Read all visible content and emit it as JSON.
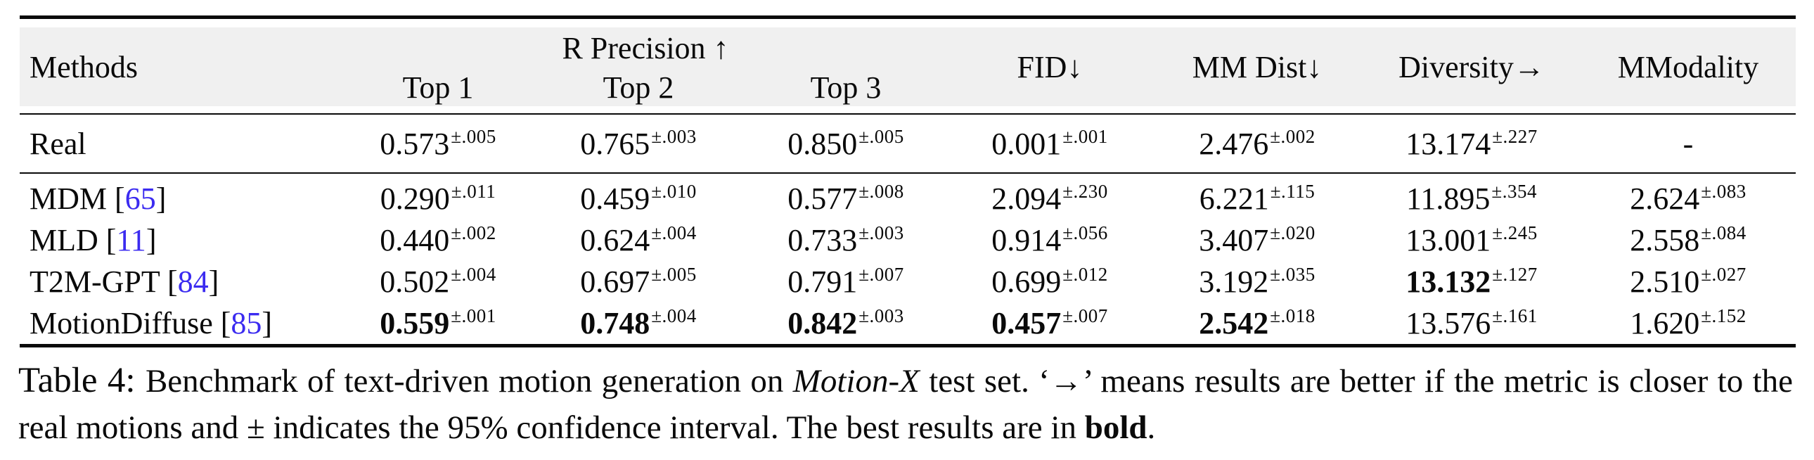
{
  "colors": {
    "header_bg": "#f0f0f0",
    "rule_color": "#0a0a0a",
    "citation_blue": "#3b2bf0"
  },
  "table": {
    "header": {
      "methods": "Methods",
      "r_precision": "R Precision ↑",
      "top1": "Top 1",
      "top2": "Top 2",
      "top3": "Top 3",
      "fid": "FID↓",
      "mm_dist": "MM Dist↓",
      "diversity": "Diversity→",
      "mmodality": "MModality"
    },
    "real_row": {
      "method": "Real",
      "cite": "",
      "cells": [
        {
          "v": "0.573",
          "ci": "±.005",
          "bold": false
        },
        {
          "v": "0.765",
          "ci": "±.003",
          "bold": false
        },
        {
          "v": "0.850",
          "ci": "±.005",
          "bold": false
        },
        {
          "v": "0.001",
          "ci": "±.001",
          "bold": false
        },
        {
          "v": "2.476",
          "ci": "±.002",
          "bold": false
        },
        {
          "v": "13.174",
          "ci": "±.227",
          "bold": false
        },
        {
          "v": "-",
          "ci": "",
          "bold": false
        }
      ]
    },
    "rows": [
      {
        "method": "MDM",
        "cite": "65",
        "cells": [
          {
            "v": "0.290",
            "ci": "±.011",
            "bold": false
          },
          {
            "v": "0.459",
            "ci": "±.010",
            "bold": false
          },
          {
            "v": "0.577",
            "ci": "±.008",
            "bold": false
          },
          {
            "v": "2.094",
            "ci": "±.230",
            "bold": false
          },
          {
            "v": "6.221",
            "ci": "±.115",
            "bold": false
          },
          {
            "v": "11.895",
            "ci": "±.354",
            "bold": false
          },
          {
            "v": "2.624",
            "ci": "±.083",
            "bold": false
          }
        ]
      },
      {
        "method": "MLD",
        "cite": "11",
        "cells": [
          {
            "v": "0.440",
            "ci": "±.002",
            "bold": false
          },
          {
            "v": "0.624",
            "ci": "±.004",
            "bold": false
          },
          {
            "v": "0.733",
            "ci": "±.003",
            "bold": false
          },
          {
            "v": "0.914",
            "ci": "±.056",
            "bold": false
          },
          {
            "v": "3.407",
            "ci": "±.020",
            "bold": false
          },
          {
            "v": "13.001",
            "ci": "±.245",
            "bold": false
          },
          {
            "v": "2.558",
            "ci": "±.084",
            "bold": false
          }
        ]
      },
      {
        "method": "T2M-GPT",
        "cite": "84",
        "cells": [
          {
            "v": "0.502",
            "ci": "±.004",
            "bold": false
          },
          {
            "v": "0.697",
            "ci": "±.005",
            "bold": false
          },
          {
            "v": "0.791",
            "ci": "±.007",
            "bold": false
          },
          {
            "v": "0.699",
            "ci": "±.012",
            "bold": false
          },
          {
            "v": "3.192",
            "ci": "±.035",
            "bold": false
          },
          {
            "v": "13.132",
            "ci": "±.127",
            "bold": true
          },
          {
            "v": "2.510",
            "ci": "±.027",
            "bold": false
          }
        ]
      },
      {
        "method": "MotionDiffuse",
        "cite": "85",
        "cells": [
          {
            "v": "0.559",
            "ci": "±.001",
            "bold": true
          },
          {
            "v": "0.748",
            "ci": "±.004",
            "bold": true
          },
          {
            "v": "0.842",
            "ci": "±.003",
            "bold": true
          },
          {
            "v": "0.457",
            "ci": "±.007",
            "bold": true
          },
          {
            "v": "2.542",
            "ci": "±.018",
            "bold": true
          },
          {
            "v": "13.576",
            "ci": "±.161",
            "bold": false
          },
          {
            "v": "1.620",
            "ci": "±.152",
            "bold": false
          }
        ]
      }
    ]
  },
  "caption": {
    "segments": [
      {
        "t": "Table 4: ",
        "cls": "cap-label"
      },
      {
        "t": "Benchmark of text-driven motion generation on "
      },
      {
        "t": "Motion-X",
        "cls": "italic"
      },
      {
        "t": " test set. ‘→’ means results are better if the metric is closer to the real motions and ± indicates the 95% confidence interval. The best results are in "
      },
      {
        "t": "bold",
        "cls": "bold"
      },
      {
        "t": "."
      }
    ]
  }
}
